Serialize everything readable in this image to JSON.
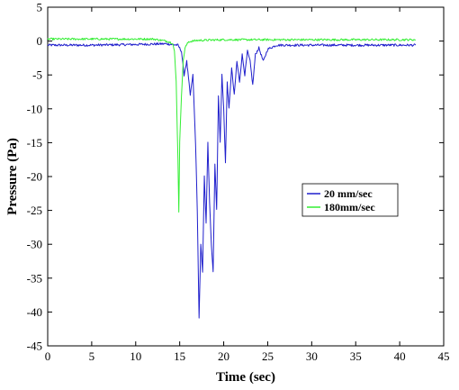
{
  "chart_data": {
    "type": "line",
    "title": "",
    "xlabel": "Time (sec)",
    "ylabel": "Pressure (Pa)",
    "xlim": [
      0,
      45
    ],
    "ylim": [
      -45,
      5
    ],
    "xticks": [
      0,
      5,
      10,
      15,
      20,
      25,
      30,
      35,
      40,
      45
    ],
    "yticks": [
      5,
      0,
      -5,
      -10,
      -15,
      -20,
      -25,
      -30,
      -35,
      -40,
      -45
    ],
    "grid": false,
    "legend_position": "center-right",
    "series": [
      {
        "name": "20 mm/sec",
        "color": "#1f1fcc",
        "points": [
          [
            0,
            -0.6
          ],
          [
            5,
            -0.6
          ],
          [
            10,
            -0.5
          ],
          [
            13.5,
            -0.4
          ],
          [
            14.8,
            -0.6
          ],
          [
            15.2,
            -1.5
          ],
          [
            15.5,
            -5
          ],
          [
            15.8,
            -3
          ],
          [
            16.2,
            -8
          ],
          [
            16.5,
            -5
          ],
          [
            16.8,
            -15
          ],
          [
            17.0,
            -25
          ],
          [
            17.2,
            -41
          ],
          [
            17.4,
            -30
          ],
          [
            17.6,
            -34
          ],
          [
            17.8,
            -20
          ],
          [
            18.0,
            -27
          ],
          [
            18.2,
            -15
          ],
          [
            18.4,
            -24
          ],
          [
            18.6,
            -30
          ],
          [
            18.8,
            -34
          ],
          [
            19.0,
            -18
          ],
          [
            19.2,
            -25
          ],
          [
            19.4,
            -8
          ],
          [
            19.6,
            -15
          ],
          [
            19.8,
            -5
          ],
          [
            20.0,
            -10
          ],
          [
            20.2,
            -18
          ],
          [
            20.4,
            -6
          ],
          [
            20.6,
            -10
          ],
          [
            20.9,
            -4
          ],
          [
            21.2,
            -8
          ],
          [
            21.5,
            -3
          ],
          [
            21.8,
            -6
          ],
          [
            22.1,
            -2
          ],
          [
            22.4,
            -5
          ],
          [
            22.7,
            -1.5
          ],
          [
            23.0,
            -3
          ],
          [
            23.3,
            -6.5
          ],
          [
            23.6,
            -2
          ],
          [
            24.0,
            -1
          ],
          [
            24.5,
            -3
          ],
          [
            25.0,
            -1.2
          ],
          [
            26,
            -0.6
          ],
          [
            30,
            -0.6
          ],
          [
            35,
            -0.6
          ],
          [
            40,
            -0.6
          ],
          [
            41.8,
            -0.6
          ]
        ]
      },
      {
        "name": "180mm/sec",
        "color": "#33ee33",
        "points": [
          [
            0,
            0.3
          ],
          [
            5,
            0.3
          ],
          [
            10,
            0.3
          ],
          [
            12,
            0.3
          ],
          [
            13.5,
            0
          ],
          [
            14.2,
            -0.3
          ],
          [
            14.4,
            -1.5
          ],
          [
            14.6,
            -6
          ],
          [
            14.8,
            -17.5
          ],
          [
            14.9,
            -25.2
          ],
          [
            15.0,
            -15
          ],
          [
            15.2,
            -8
          ],
          [
            15.4,
            -3
          ],
          [
            15.6,
            -1
          ],
          [
            16.0,
            -0.1
          ],
          [
            17,
            0.1
          ],
          [
            20,
            0.2
          ],
          [
            25,
            0.2
          ],
          [
            30,
            0.2
          ],
          [
            35,
            0.2
          ],
          [
            40,
            0.2
          ],
          [
            41.8,
            0.2
          ]
        ]
      }
    ]
  }
}
